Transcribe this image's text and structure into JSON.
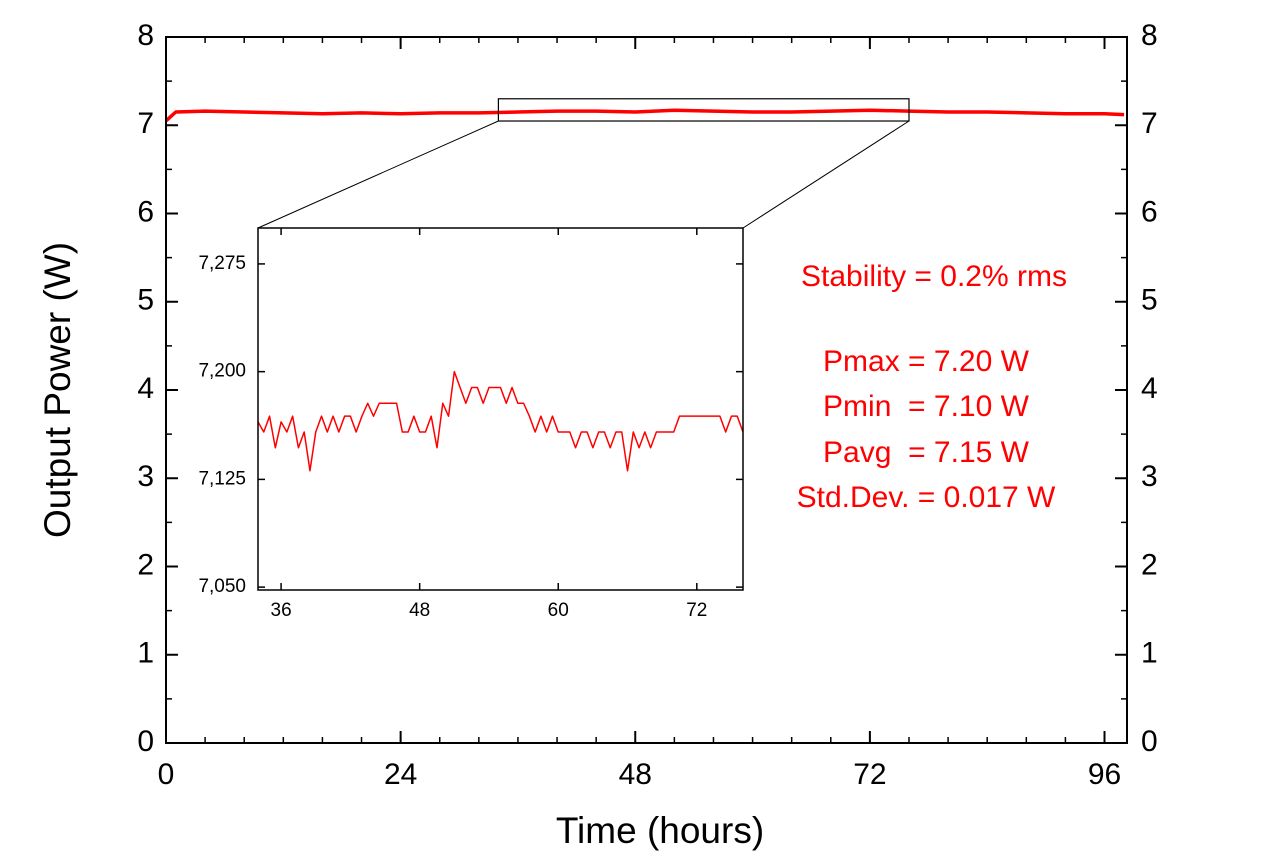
{
  "chart_data": [
    {
      "type": "line",
      "xlabel": "Time (hours)",
      "ylabel": "Output Power (W)",
      "x": [
        0,
        1,
        4,
        8,
        12,
        16,
        20,
        24,
        28,
        32,
        36,
        40,
        44,
        48,
        52,
        56,
        60,
        64,
        68,
        72,
        76,
        80,
        84,
        88,
        92,
        96,
        98
      ],
      "series": [
        {
          "color": "#ff0000",
          "values": [
            7.05,
            7.15,
            7.16,
            7.15,
            7.14,
            7.13,
            7.14,
            7.13,
            7.14,
            7.14,
            7.15,
            7.16,
            7.16,
            7.15,
            7.17,
            7.16,
            7.15,
            7.15,
            7.16,
            7.17,
            7.16,
            7.15,
            7.15,
            7.14,
            7.13,
            7.13,
            7.12
          ]
        }
      ],
      "xlim": [
        0,
        98.3
      ],
      "ylim": [
        0,
        8
      ],
      "xticks": [
        0,
        24,
        48,
        72,
        96
      ],
      "yticks": [
        0,
        1,
        2,
        3,
        4,
        5,
        6,
        7,
        8
      ],
      "annotations": [
        "Stability = 0.2% rms",
        "Pmax = 7.20 W",
        "Pmin  = 7.10 W",
        "Pavg  = 7.15 W",
        "Std.Dev. = 0.017 W"
      ]
    },
    {
      "type": "line",
      "x": [
        34,
        34.5,
        35,
        35.5,
        36,
        36.5,
        37,
        37.5,
        38,
        38.5,
        39,
        39.5,
        40,
        40.5,
        41,
        41.5,
        42,
        42.5,
        43,
        43.5,
        44,
        44.5,
        45,
        45.5,
        46,
        46.5,
        47,
        47.5,
        48,
        48.5,
        49,
        49.5,
        50,
        50.5,
        51,
        51.5,
        52,
        52.5,
        53,
        53.5,
        54,
        54.5,
        55,
        55.5,
        56,
        56.5,
        57,
        57.5,
        58,
        58.5,
        59,
        59.5,
        60,
        60.5,
        61,
        61.5,
        62,
        62.5,
        63,
        63.5,
        64,
        64.5,
        65,
        65.5,
        66,
        66.5,
        67,
        67.5,
        68,
        68.5,
        69,
        69.5,
        70,
        70.5,
        71,
        71.5,
        72,
        72.5,
        73,
        73.5,
        74,
        74.5,
        75,
        75.5,
        76
      ],
      "series": [
        {
          "color": "#ff0000",
          "values": [
            7.165,
            7.158,
            7.169,
            7.147,
            7.165,
            7.158,
            7.169,
            7.147,
            7.158,
            7.131,
            7.158,
            7.169,
            7.158,
            7.169,
            7.158,
            7.169,
            7.169,
            7.158,
            7.169,
            7.178,
            7.169,
            7.178,
            7.178,
            7.178,
            7.178,
            7.158,
            7.158,
            7.169,
            7.158,
            7.158,
            7.169,
            7.147,
            7.178,
            7.169,
            7.2,
            7.189,
            7.178,
            7.189,
            7.189,
            7.178,
            7.189,
            7.189,
            7.189,
            7.178,
            7.189,
            7.178,
            7.178,
            7.169,
            7.158,
            7.169,
            7.158,
            7.169,
            7.158,
            7.158,
            7.158,
            7.147,
            7.158,
            7.158,
            7.147,
            7.158,
            7.158,
            7.147,
            7.158,
            7.158,
            7.131,
            7.158,
            7.147,
            7.158,
            7.147,
            7.158,
            7.158,
            7.158,
            7.158,
            7.169,
            7.169,
            7.169,
            7.169,
            7.169,
            7.169,
            7.169,
            7.169,
            7.158,
            7.169,
            7.169,
            7.158
          ]
        }
      ],
      "xlim": [
        34,
        76
      ],
      "ylim": [
        7.048,
        7.3
      ],
      "xticks": [
        36,
        48,
        60,
        72
      ],
      "yticks": [
        {
          "value": 7.05,
          "label": "7,050"
        },
        {
          "value": 7.125,
          "label": "7,125"
        },
        {
          "value": 7.2,
          "label": "7,200"
        },
        {
          "value": 7.275,
          "label": "7,275"
        }
      ]
    }
  ]
}
